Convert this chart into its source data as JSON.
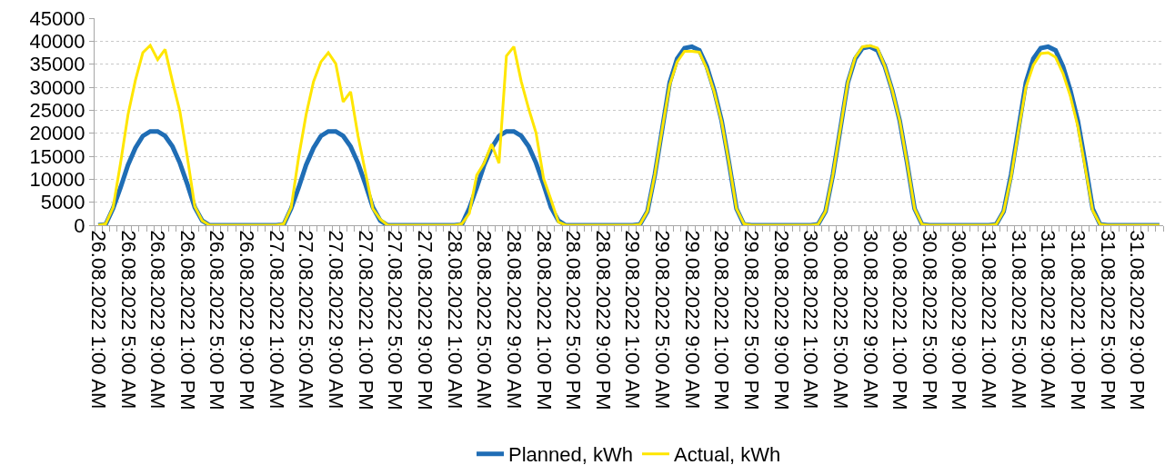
{
  "chart_data": {
    "type": "line",
    "categories": [
      "26.08.2022 1:00 AM",
      null,
      null,
      null,
      "26.08.2022 5:00 AM",
      null,
      null,
      null,
      "26.08.2022 9:00 AM",
      null,
      null,
      null,
      "26.08.2022 1:00 PM",
      null,
      null,
      null,
      "26.08.2022 5:00 PM",
      null,
      null,
      null,
      "26.08.2022 9:00 PM",
      null,
      null,
      null,
      "27.08.2022 1:00 AM",
      null,
      null,
      null,
      "27.08.2022 5:00 AM",
      null,
      null,
      null,
      "27.08.2022 9:00 AM",
      null,
      null,
      null,
      "27.08.2022 1:00 PM",
      null,
      null,
      null,
      "27.08.2022 5:00 PM",
      null,
      null,
      null,
      "27.08.2022 9:00 PM",
      null,
      null,
      null,
      "28.08.2022 1:00 AM",
      null,
      null,
      null,
      "28.08.2022 5:00 AM",
      null,
      null,
      null,
      "28.08.2022 9:00 AM",
      null,
      null,
      null,
      "28.08.2022 1:00 PM",
      null,
      null,
      null,
      "28.08.2022 5:00 PM",
      null,
      null,
      null,
      "28.08.2022 9:00 PM",
      null,
      null,
      null,
      "29.08.2022 1:00 AM",
      null,
      null,
      null,
      "29.08.2022 5:00 AM",
      null,
      null,
      null,
      "29.08.2022 9:00 AM",
      null,
      null,
      null,
      "29.08.2022 1:00 PM",
      null,
      null,
      null,
      "29.08.2022 5:00 PM",
      null,
      null,
      null,
      "29.08.2022 9:00 PM",
      null,
      null,
      null,
      "30.08.2022 1:00 AM",
      null,
      null,
      null,
      "30.08.2022 5:00 AM",
      null,
      null,
      null,
      "30.08.2022 9:00 AM",
      null,
      null,
      null,
      "30.08.2022 1:00 PM",
      null,
      null,
      null,
      "30.08.2022 5:00 PM",
      null,
      null,
      null,
      "30.08.2022 9:00 PM",
      null,
      null,
      null,
      "31.08.2022 1:00 AM",
      null,
      null,
      null,
      "31.08.2022 5:00 AM",
      null,
      null,
      null,
      "31.08.2022 9:00 AM",
      null,
      null,
      null,
      "31.08.2022 1:00 PM",
      null,
      null,
      null,
      "31.08.2022 5:00 PM",
      null,
      null,
      null,
      "31.08.2022 9:00 PM",
      null,
      null,
      null
    ],
    "series": [
      {
        "name": "Planned, kWh",
        "color": "#1f6db5",
        "values": [
          0,
          200,
          3700,
          8200,
          13100,
          16800,
          19400,
          20400,
          20400,
          19400,
          17100,
          13500,
          8900,
          3900,
          1000,
          0,
          0,
          0,
          0,
          0,
          0,
          0,
          0,
          0,
          0,
          200,
          3700,
          8200,
          13100,
          16800,
          19400,
          20400,
          20400,
          19400,
          17100,
          13500,
          8900,
          3900,
          1000,
          0,
          0,
          0,
          0,
          0,
          0,
          0,
          0,
          0,
          0,
          200,
          3700,
          8200,
          13100,
          16800,
          19400,
          20400,
          20400,
          19400,
          17100,
          13500,
          8900,
          3900,
          1000,
          0,
          0,
          0,
          0,
          0,
          0,
          0,
          0,
          0,
          0,
          200,
          3000,
          11000,
          21000,
          31000,
          36200,
          38500,
          38800,
          38000,
          34500,
          29300,
          22700,
          13500,
          3600,
          200,
          0,
          0,
          0,
          0,
          0,
          0,
          0,
          0,
          0,
          200,
          3000,
          11000,
          21000,
          31000,
          36200,
          38500,
          38800,
          38000,
          34500,
          29300,
          22700,
          13500,
          3600,
          200,
          0,
          0,
          0,
          0,
          0,
          0,
          0,
          0,
          0,
          200,
          3000,
          11000,
          21000,
          31000,
          36200,
          38500,
          38800,
          38000,
          34500,
          29300,
          22700,
          13500,
          3600,
          200,
          0,
          0,
          0,
          0,
          0,
          0,
          0,
          0
        ]
      },
      {
        "name": "Actual, kWh",
        "color": "#ffe600",
        "values": [
          0,
          300,
          3900,
          13500,
          24000,
          31500,
          37500,
          39100,
          36000,
          38200,
          31200,
          24700,
          14800,
          4100,
          1000,
          0,
          0,
          0,
          0,
          0,
          0,
          0,
          0,
          0,
          0,
          300,
          3900,
          14800,
          24000,
          31200,
          35500,
          37500,
          35100,
          26800,
          29000,
          19400,
          11500,
          3600,
          1300,
          0,
          0,
          0,
          0,
          0,
          0,
          0,
          0,
          0,
          0,
          300,
          2600,
          10900,
          13500,
          17600,
          13500,
          36800,
          38800,
          31200,
          25300,
          20000,
          10200,
          5600,
          700,
          0,
          0,
          0,
          0,
          0,
          0,
          0,
          0,
          0,
          0,
          200,
          3000,
          11000,
          21000,
          30500,
          35500,
          37800,
          37800,
          37600,
          34000,
          29000,
          22500,
          13500,
          3600,
          300,
          0,
          0,
          0,
          0,
          0,
          0,
          0,
          0,
          0,
          200,
          3000,
          11000,
          21000,
          31000,
          36500,
          38800,
          39000,
          38500,
          34500,
          29300,
          22700,
          13500,
          3600,
          200,
          0,
          0,
          0,
          0,
          0,
          0,
          0,
          0,
          0,
          200,
          3000,
          10500,
          20500,
          30000,
          34800,
          37300,
          37500,
          36500,
          33000,
          28000,
          21500,
          12500,
          3200,
          200,
          0,
          0,
          0,
          0,
          0,
          0,
          0,
          0
        ]
      }
    ],
    "ylim": [
      0,
      45000
    ],
    "yticks": [
      0,
      5000,
      10000,
      15000,
      20000,
      25000,
      30000,
      35000,
      40000,
      45000
    ],
    "grid": "y",
    "legend": "bottom"
  }
}
